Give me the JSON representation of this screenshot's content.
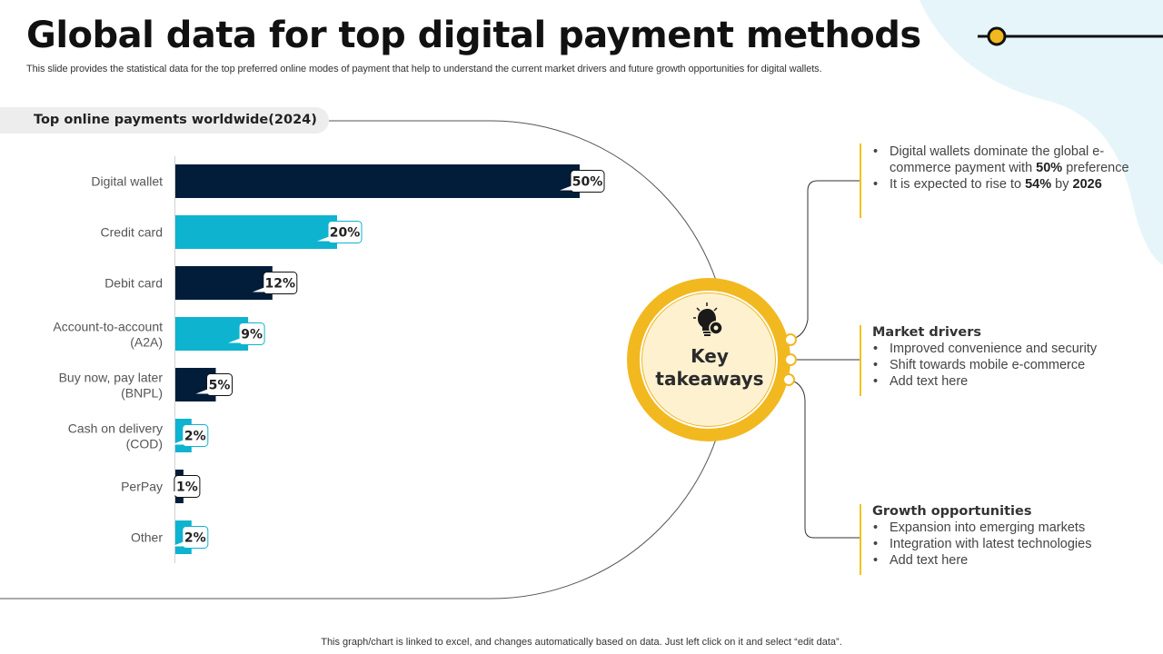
{
  "slide": {
    "title": "Global data for top digital payment methods",
    "subtitle": "This slide provides the statistical data for the top preferred online modes of payment that help to understand the current market drivers and future growth opportunities for digital wallets.",
    "footer": "This graph/chart is linked to excel,  and changes automatically based on data. Just left click on it and select “edit data”."
  },
  "colors": {
    "navy": "#021d3a",
    "cyan": "#0eb3cf",
    "gold": "#f2b81f",
    "cream": "#fdf1d0",
    "blob": "#e6f5fa"
  },
  "center": {
    "line1": "Key",
    "line2": "takeaways",
    "icon": "lightbulb-gear-icon"
  },
  "chart_data": {
    "type": "bar",
    "orientation": "horizontal",
    "title": "Top online payments worldwide(2024)",
    "categories": [
      [
        "Digital wallet"
      ],
      [
        "Credit card"
      ],
      [
        "Debit card"
      ],
      [
        "Account-to-account",
        "(A2A)"
      ],
      [
        "Buy now, pay later",
        "(BNPL)"
      ],
      [
        "Cash on delivery",
        "(COD)"
      ],
      [
        "PerPay"
      ],
      [
        "Other"
      ]
    ],
    "values": [
      50,
      20,
      12,
      9,
      5,
      2,
      1,
      2
    ],
    "value_labels": [
      "50%",
      "20%",
      "12%",
      "9%",
      "5%",
      "2%",
      "1%",
      "2%"
    ],
    "unit": "%",
    "bar_colors": [
      "navy",
      "cyan",
      "navy",
      "cyan",
      "navy",
      "cyan",
      "navy",
      "cyan"
    ],
    "xlim": [
      0,
      50
    ],
    "grid": false,
    "legend": "none"
  },
  "panels": [
    {
      "heading": "",
      "items": [
        {
          "pre": "Digital wallets dominate the global e-commerce payment with ",
          "bold": "50%",
          "post": " preference"
        },
        {
          "pre": "It is expected to rise to ",
          "bold": "54%",
          "mid": " by ",
          "bold2": "2026"
        }
      ]
    },
    {
      "heading": "Market drivers",
      "items": [
        {
          "pre": "Improved convenience and security"
        },
        {
          "pre": "Shift towards mobile e-commerce"
        },
        {
          "pre": "Add text here"
        }
      ]
    },
    {
      "heading": "Growth opportunities",
      "items": [
        {
          "pre": "Expansion into emerging markets"
        },
        {
          "pre": "Integration with latest technologies"
        },
        {
          "pre": "Add text here"
        }
      ]
    }
  ]
}
